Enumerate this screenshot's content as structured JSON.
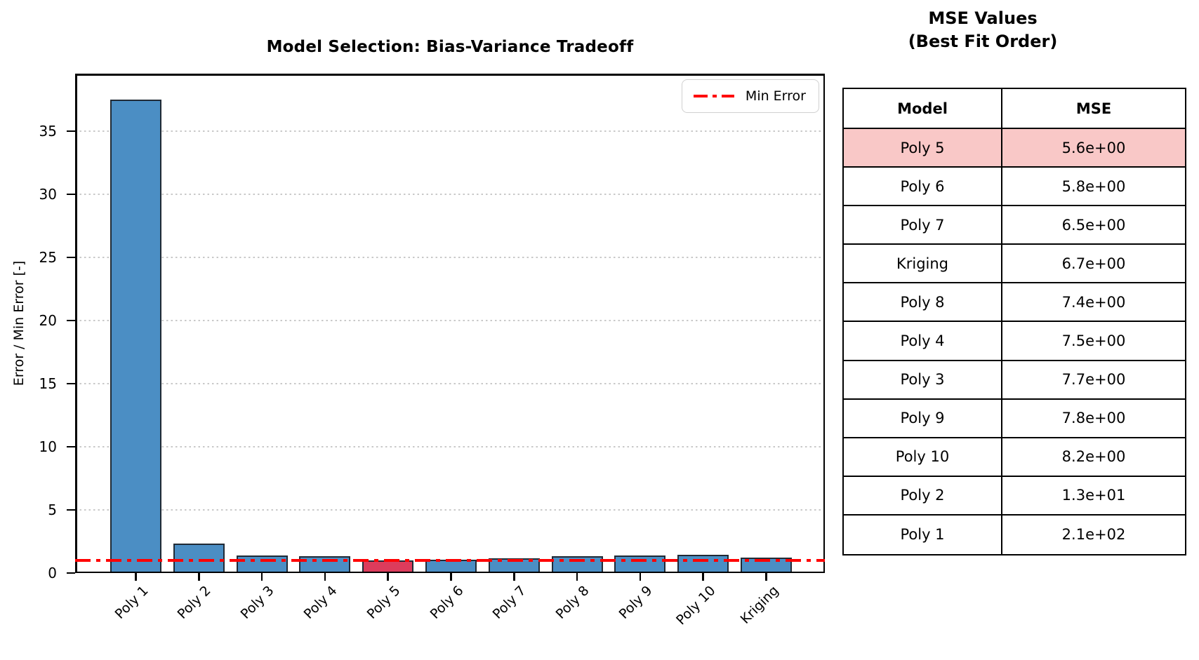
{
  "chart_data": {
    "type": "bar",
    "title": "Model Selection: Bias-Variance Tradeoff",
    "xlabel": "",
    "ylabel": "Error / Min Error [-]",
    "categories": [
      "Poly 1",
      "Poly 2",
      "Poly 3",
      "Poly 4",
      "Poly 5",
      "Poly 6",
      "Poly 7",
      "Poly 8",
      "Poly 9",
      "Poly 10",
      "Kriging"
    ],
    "values": [
      37.5,
      2.32,
      1.38,
      1.34,
      1.0,
      1.04,
      1.16,
      1.32,
      1.39,
      1.46,
      1.2
    ],
    "highlight_index": 4,
    "yticks": [
      0,
      5,
      10,
      15,
      20,
      25,
      30,
      35
    ],
    "ylim": [
      0,
      39.6
    ],
    "grid": "horizontal dotted",
    "legend": {
      "label": "Min Error",
      "position": "upper right"
    },
    "reference_line": {
      "y": 1.0,
      "style": "dash-dot",
      "color": "#ff0000"
    },
    "colors": {
      "bar": "#4b8ec4",
      "highlight_bar": "#dc3c5c",
      "bar_edge": "#202a35",
      "line": "#ff0000",
      "grid": "#c9c9c9"
    }
  },
  "table": {
    "title_line1": "MSE Values",
    "title_line2": "(Best Fit Order)",
    "headers": [
      "Model",
      "MSE"
    ],
    "highlight_color": "#f9c8c7",
    "rows": [
      {
        "model": "Poly 5",
        "mse": "5.6e+00",
        "highlight": true
      },
      {
        "model": "Poly 6",
        "mse": "5.8e+00",
        "highlight": false
      },
      {
        "model": "Poly 7",
        "mse": "6.5e+00",
        "highlight": false
      },
      {
        "model": "Kriging",
        "mse": "6.7e+00",
        "highlight": false
      },
      {
        "model": "Poly 8",
        "mse": "7.4e+00",
        "highlight": false
      },
      {
        "model": "Poly 4",
        "mse": "7.5e+00",
        "highlight": false
      },
      {
        "model": "Poly 3",
        "mse": "7.7e+00",
        "highlight": false
      },
      {
        "model": "Poly 9",
        "mse": "7.8e+00",
        "highlight": false
      },
      {
        "model": "Poly 10",
        "mse": "8.2e+00",
        "highlight": false
      },
      {
        "model": "Poly 2",
        "mse": "1.3e+01",
        "highlight": false
      },
      {
        "model": "Poly 1",
        "mse": "2.1e+02",
        "highlight": false
      }
    ]
  }
}
